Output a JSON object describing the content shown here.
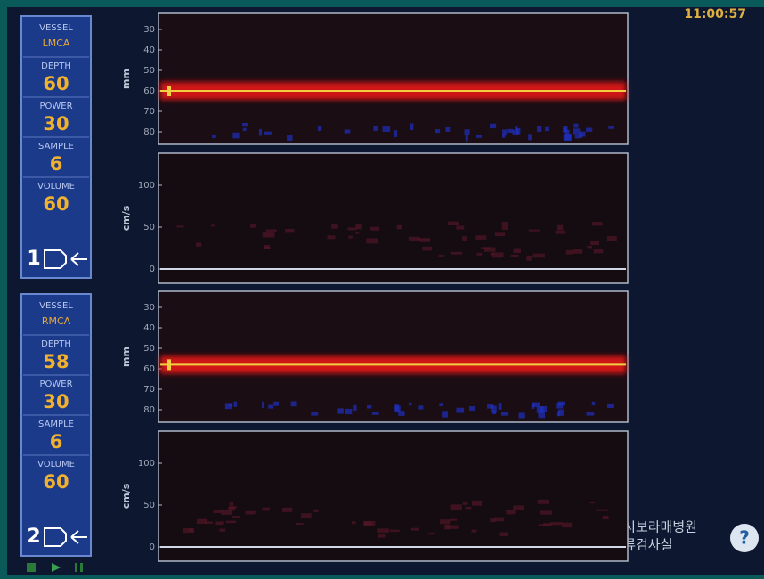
{
  "clock": "11:00:57",
  "channels": [
    {
      "vessel_label": "VESSEL",
      "vessel": "LMCA",
      "fields": [
        {
          "label": "DEPTH",
          "value": 60
        },
        {
          "label": "POWER",
          "value": 30
        },
        {
          "label": "SAMPLE",
          "value": 6
        },
        {
          "label": "VOLUME",
          "value": 60
        }
      ],
      "number": 1,
      "mmode": {
        "unit": "mm",
        "ticks": [
          30,
          40,
          50,
          60,
          70,
          80
        ]
      },
      "spectrum": {
        "unit": "cm/s",
        "ticks": [
          100,
          50,
          0
        ]
      }
    },
    {
      "vessel_label": "VESSEL",
      "vessel": "RMCA",
      "fields": [
        {
          "label": "DEPTH",
          "value": 58
        },
        {
          "label": "POWER",
          "value": 30
        },
        {
          "label": "SAMPLE",
          "value": 6
        },
        {
          "label": "VOLUME",
          "value": 60
        }
      ],
      "number": 2,
      "mmode": {
        "unit": "mm",
        "ticks": [
          30,
          40,
          50,
          60,
          70,
          80
        ]
      },
      "spectrum": {
        "unit": "cm/s",
        "ticks": [
          100,
          50,
          0
        ]
      }
    }
  ],
  "watermark": {
    "line1": "서울특별시보라매병원",
    "line2": "뇌혈류검사실"
  }
}
